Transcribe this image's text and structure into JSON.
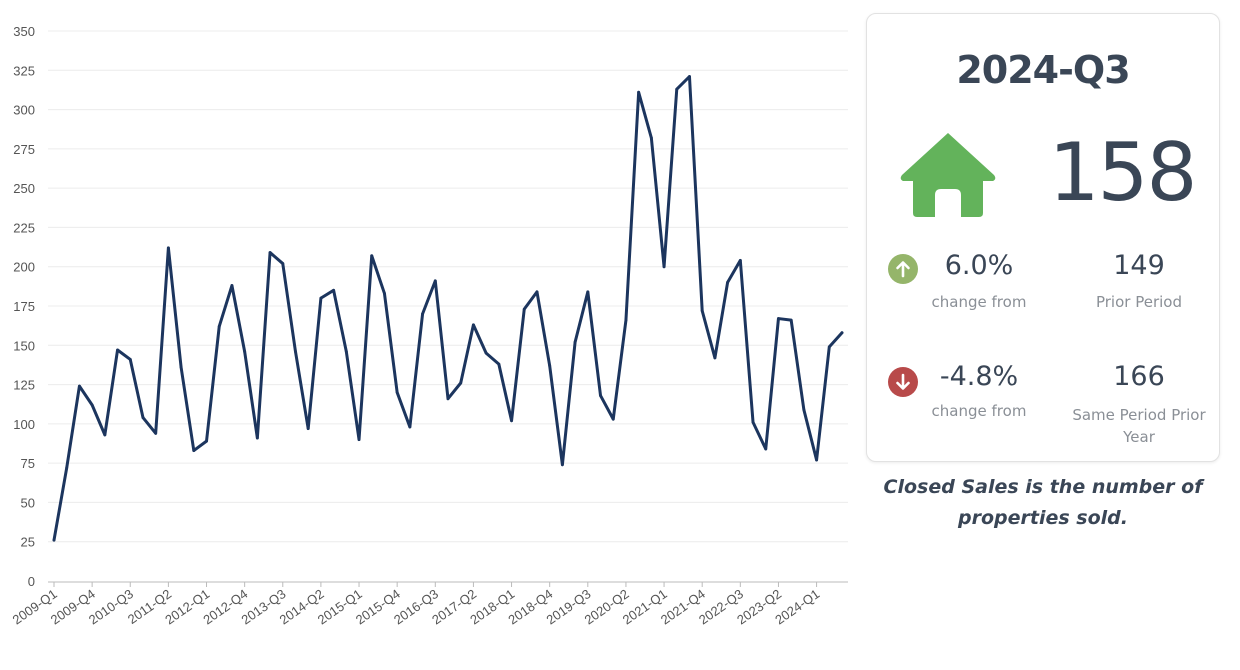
{
  "chart_data": {
    "type": "line",
    "y_ticks": [
      0,
      25,
      50,
      75,
      100,
      125,
      150,
      175,
      200,
      225,
      250,
      275,
      300,
      325,
      350
    ],
    "ylim": [
      0,
      350
    ],
    "grid": true,
    "x_tick_labels": [
      "2009-Q1",
      "2009-Q4",
      "2010-Q3",
      "2011-Q2",
      "2012-Q1",
      "2012-Q4",
      "2013-Q3",
      "2014-Q2",
      "2015-Q1",
      "2015-Q4",
      "2016-Q3",
      "2017-Q2",
      "2018-Q1",
      "2018-Q4",
      "2019-Q3",
      "2020-Q2",
      "2021-Q1",
      "2021-Q4",
      "2022-Q3",
      "2023-Q2",
      "2024-Q1"
    ],
    "line_color": "#1c355e",
    "series": [
      {
        "values": [
          26,
          72,
          124,
          112,
          93,
          147,
          141,
          104,
          94,
          212,
          136,
          83,
          89,
          162,
          188,
          146,
          91,
          209,
          202,
          146,
          97,
          180,
          185,
          146,
          90,
          207,
          183,
          120,
          98,
          170,
          191,
          116,
          126,
          163,
          145,
          138,
          102,
          173,
          184,
          137,
          74,
          152,
          184,
          118,
          103,
          166,
          311,
          282,
          200,
          313,
          321,
          172,
          142,
          190,
          204,
          101,
          84,
          167,
          166,
          109,
          77,
          149,
          158
        ]
      }
    ]
  },
  "card": {
    "period": "2024-Q3",
    "value": "158",
    "home_icon": "home-icon",
    "accent_color": "#63b35b",
    "change1": {
      "icon": "arrow-up-circle-icon",
      "color": "#95b56a",
      "percent": "6.0%",
      "label": "change from",
      "compare_value": "149",
      "compare_label": "Prior Period"
    },
    "change2": {
      "icon": "arrow-down-circle-icon",
      "color": "#b84a4a",
      "percent": "-4.8%",
      "label": "change from",
      "compare_value": "166",
      "compare_label_line1": "Same Period Prior",
      "compare_label_line2": "Year"
    }
  },
  "caption_line1": "Closed Sales is the number of",
  "caption_line2": "properties sold."
}
